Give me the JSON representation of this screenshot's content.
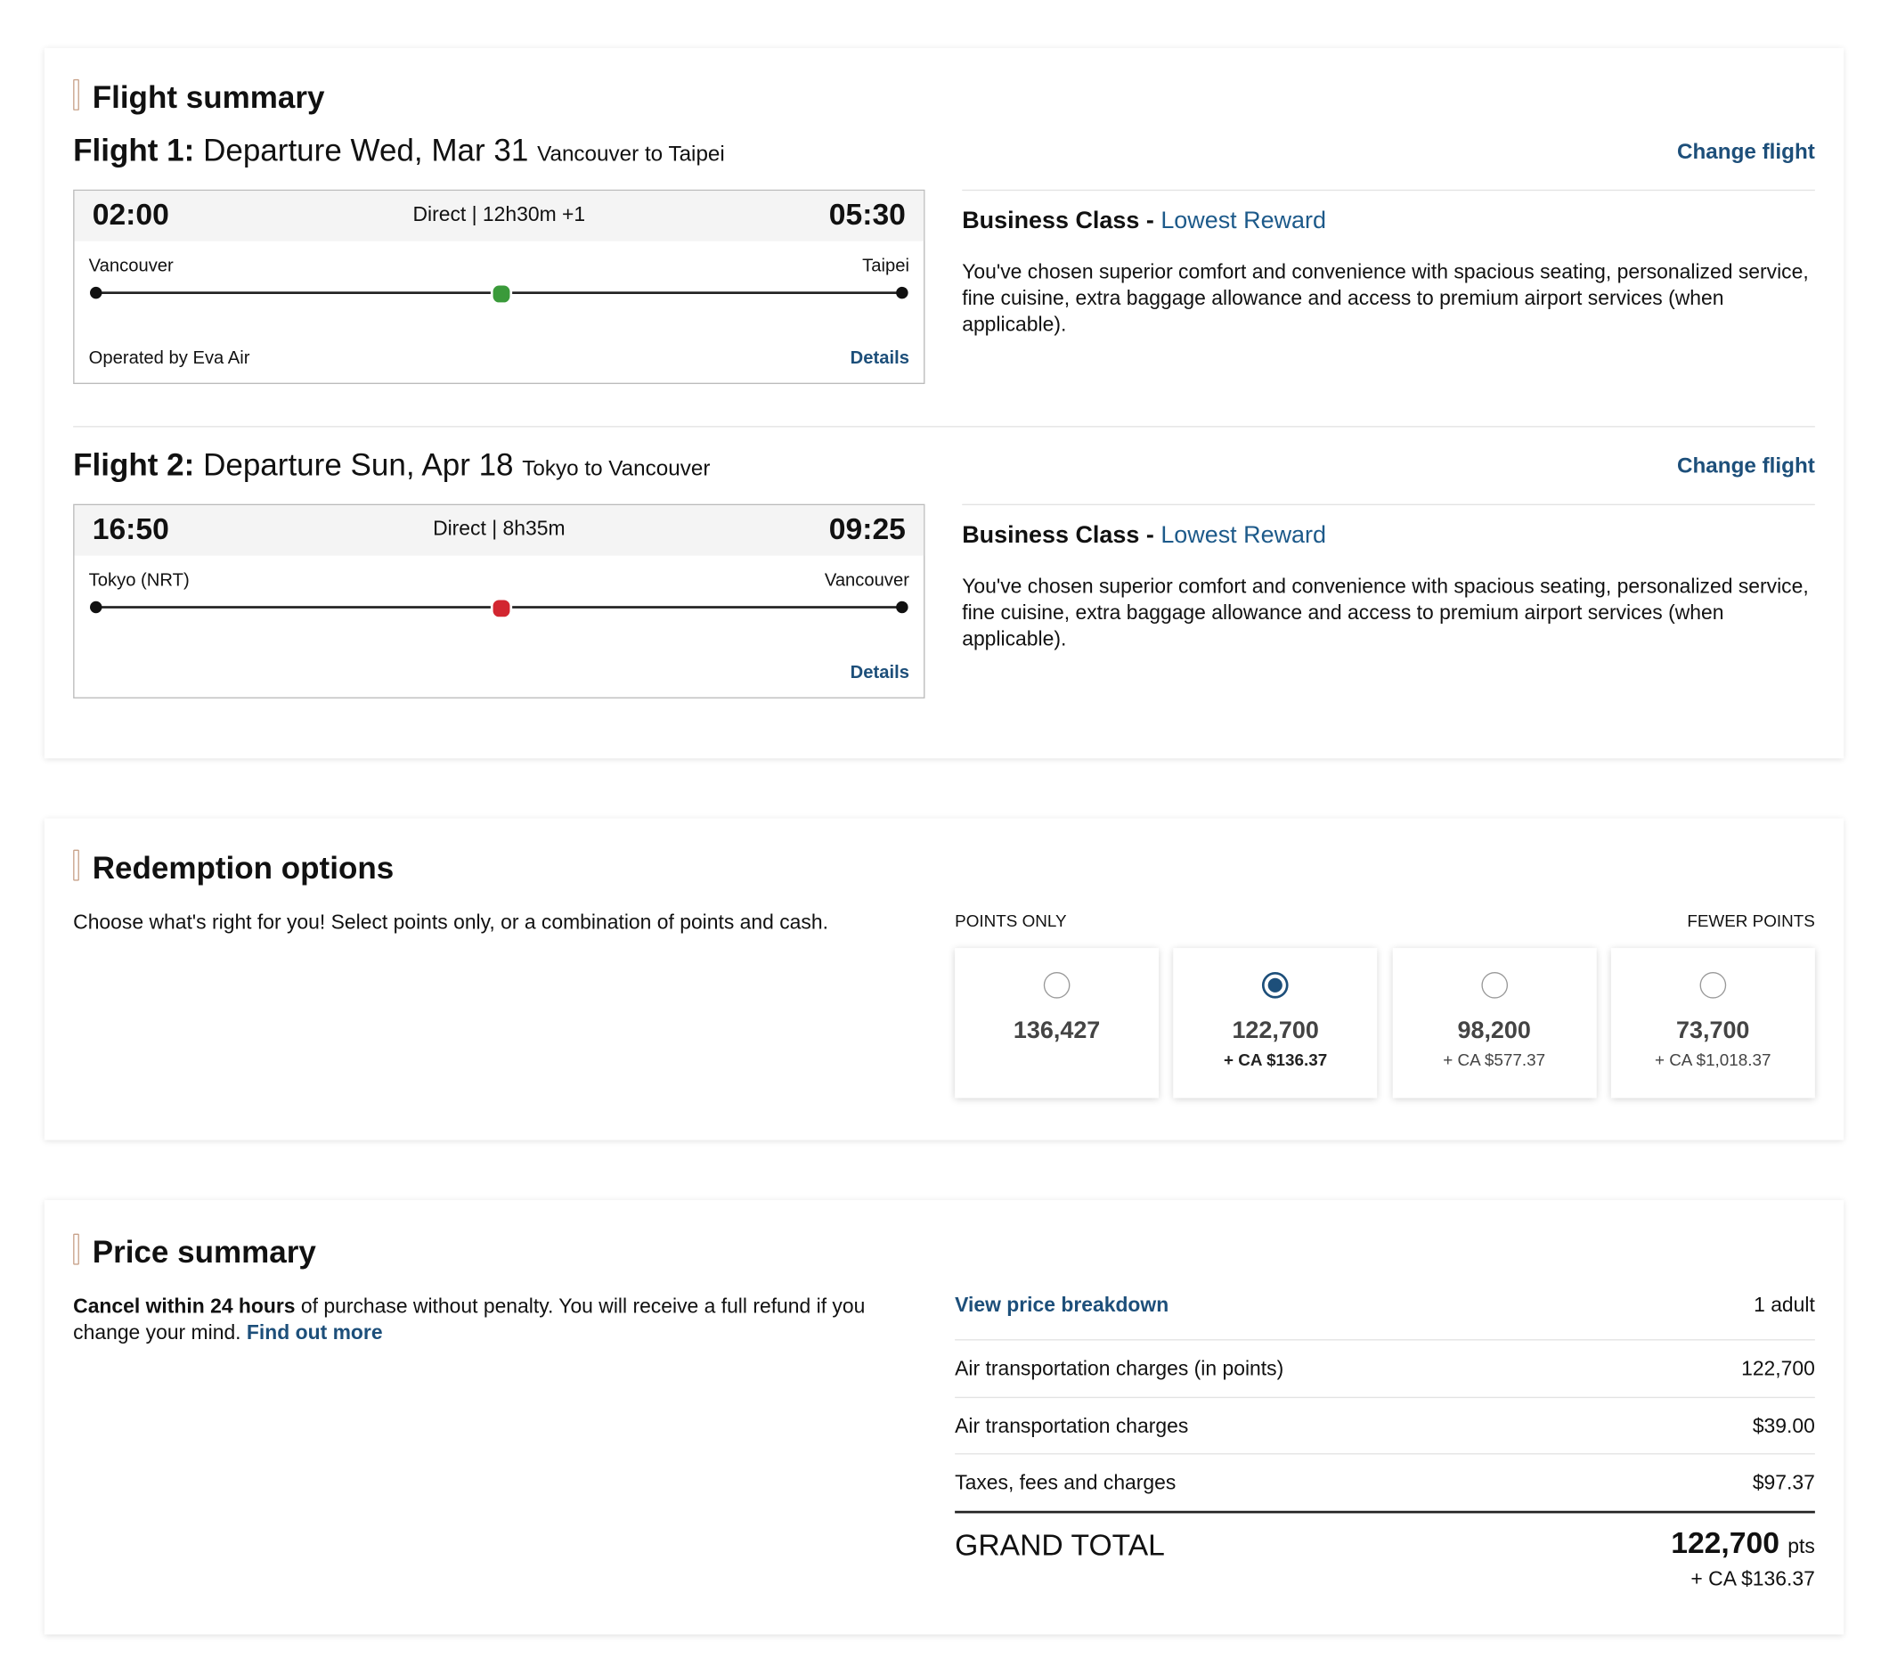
{
  "flight_summary": {
    "title": "Flight summary",
    "flights": [
      {
        "label": "Flight 1:",
        "departure": "Departure Wed, Mar 31",
        "route": "Vancouver to Taipei",
        "change": "Change flight",
        "dep_time": "02:00",
        "info": "Direct | 12h30m +1",
        "arr_time": "05:30",
        "origin": "Vancouver",
        "destination": "Taipei",
        "operated": "Operated by Eva Air",
        "details": "Details",
        "carrier_color": "#3a9a3a",
        "cabin": "Business Class -",
        "fare": "Lowest Reward",
        "description": "You've chosen superior comfort and convenience with spacious seating, personalized service, fine cuisine, extra baggage allowance and access to premium airport services (when applicable)."
      },
      {
        "label": "Flight 2:",
        "departure": "Departure Sun, Apr 18",
        "route": "Tokyo to Vancouver",
        "change": "Change flight",
        "dep_time": "16:50",
        "info": "Direct | 8h35m",
        "arr_time": "09:25",
        "origin": "Tokyo (NRT)",
        "destination": "Vancouver",
        "details": "Details",
        "carrier_color": "#d22630",
        "cabin": "Business Class -",
        "fare": "Lowest Reward",
        "description": "You've chosen superior comfort and convenience with spacious seating, personalized service, fine cuisine, extra baggage allowance and access to premium airport services (when applicable)."
      }
    ]
  },
  "redemption": {
    "title": "Redemption options",
    "intro": "Choose what's right for you! Select points only, or a combination of points and cash.",
    "left_label": "POINTS ONLY",
    "right_label": "FEWER POINTS",
    "options": [
      {
        "points": "136,427",
        "selected": false
      },
      {
        "points": "122,700",
        "cash": "+ CA $136.37",
        "selected": true
      },
      {
        "points": "98,200",
        "cash": "+ CA $577.37",
        "selected": false
      },
      {
        "points": "73,700",
        "cash": "+ CA $1,018.37",
        "selected": false
      }
    ]
  },
  "price": {
    "title": "Price summary",
    "cancel_bold": "Cancel within 24 hours",
    "cancel_text": " of purchase without penalty. You will receive a full refund if you change your mind.",
    "find_out": "Find out more",
    "breakdown": "View price breakdown",
    "passengers": "1 adult",
    "rows": [
      [
        "Air transportation charges (in points)",
        "122,700"
      ],
      [
        "Air transportation charges",
        "$39.00"
      ],
      [
        "Taxes, fees and charges",
        "$97.37"
      ]
    ],
    "grand_total_label": "GRAND TOTAL",
    "grand_total_points": "122,700",
    "pts": "pts",
    "grand_total_cash": "+ CA $136.37"
  }
}
